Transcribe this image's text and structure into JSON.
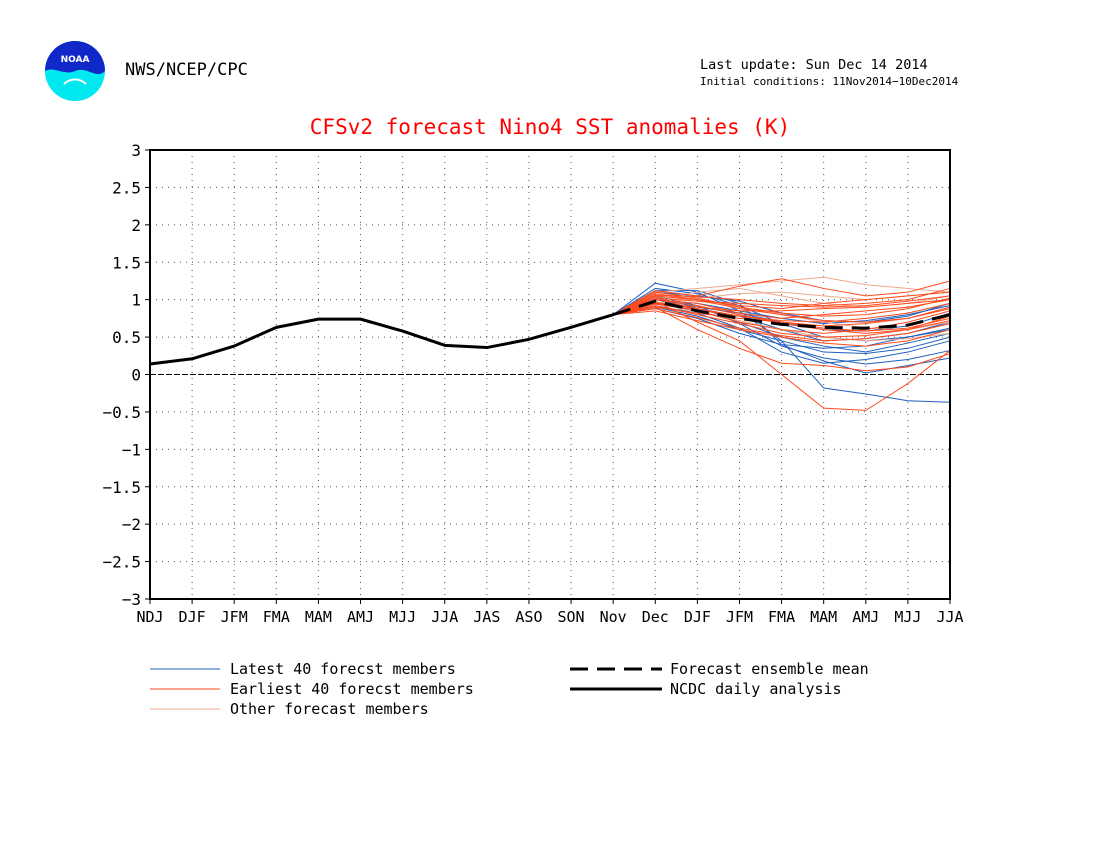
{
  "header": {
    "agency": "NWS/NCEP/CPC",
    "logo_text": "NOAA",
    "last_update": "Last update: Sun Dec 14 2014",
    "initial_conditions": "Initial conditions: 11Nov2014−10Dec2014"
  },
  "colors": {
    "title": "#ff0000",
    "latest": "#1f5fbf",
    "earliest": "#ff4a1c",
    "other": "#f0a890",
    "mean": "#000000",
    "observed": "#000000"
  },
  "legend": {
    "latest": "Latest 40 forecst members",
    "earliest": "Earliest 40 forecst members",
    "other": "Other forecast members",
    "mean": "Forecast ensemble mean",
    "observed": "NCDC daily analysis"
  },
  "chart_data": {
    "type": "line",
    "title": "CFSv2 forecast Nino4 SST anomalies (K)",
    "xlabel": "",
    "ylabel": "",
    "ylim": [
      -3,
      3
    ],
    "yticks": [
      "3",
      "2.5",
      "2",
      "1.5",
      "1",
      "0.5",
      "0",
      "−0.5",
      "−1",
      "−1.5",
      "−2",
      "−2.5",
      "−3"
    ],
    "categories": [
      "NDJ",
      "DJF",
      "JFM",
      "FMA",
      "MAM",
      "AMJ",
      "MJJ",
      "JJA",
      "JAS",
      "ASO",
      "SON",
      "Nov",
      "Dec",
      "DJF",
      "JFM",
      "FMA",
      "MAM",
      "AMJ",
      "MJJ",
      "JJA"
    ],
    "grid": true,
    "zero_line": true,
    "observed": {
      "name": "NCDC daily analysis",
      "values": [
        0.14,
        0.21,
        0.38,
        0.63,
        0.74,
        0.74,
        0.58,
        0.39,
        0.36,
        0.47,
        0.63,
        0.8
      ]
    },
    "ensemble_mean": {
      "name": "Forecast ensemble mean",
      "start_index": 11,
      "values": [
        0.8,
        0.98,
        0.85,
        0.75,
        0.67,
        0.63,
        0.62,
        0.66,
        0.8
      ]
    },
    "member_groups": [
      {
        "name": "Latest 40 forecst members",
        "start_index": 11,
        "members": [
          [
            0.8,
            1.22,
            1.1,
            0.85,
            0.45,
            -0.18,
            -0.26,
            -0.35,
            -0.37
          ],
          [
            0.8,
            1.12,
            1.12,
            0.95,
            0.4,
            0.18,
            0.02,
            0.12,
            0.22
          ],
          [
            0.8,
            1.05,
            0.92,
            0.68,
            0.38,
            0.22,
            0.14,
            0.2,
            0.32
          ],
          [
            0.8,
            1.0,
            0.88,
            0.78,
            0.6,
            0.45,
            0.48,
            0.55,
            0.7
          ],
          [
            0.8,
            0.92,
            0.82,
            0.62,
            0.3,
            0.15,
            0.2,
            0.3,
            0.45
          ],
          [
            0.8,
            1.1,
            1.05,
            0.98,
            0.82,
            0.72,
            0.7,
            0.78,
            0.95
          ],
          [
            0.8,
            0.88,
            0.75,
            0.55,
            0.4,
            0.35,
            0.38,
            0.5,
            0.6
          ],
          [
            0.8,
            1.02,
            0.9,
            0.82,
            0.7,
            0.6,
            0.58,
            0.65,
            0.82
          ],
          [
            0.8,
            0.95,
            0.85,
            0.7,
            0.5,
            0.38,
            0.3,
            0.42,
            0.55
          ],
          [
            0.8,
            1.15,
            1.08,
            0.92,
            0.68,
            0.5,
            0.45,
            0.5,
            0.62
          ],
          [
            0.8,
            0.9,
            0.78,
            0.6,
            0.45,
            0.3,
            0.28,
            0.35,
            0.5
          ],
          [
            0.8,
            1.0,
            0.95,
            0.85,
            0.75,
            0.68,
            0.72,
            0.8,
            0.92
          ]
        ]
      },
      {
        "name": "Other forecast members",
        "start_index": 11,
        "members": [
          [
            0.8,
            1.1,
            1.15,
            1.2,
            1.25,
            1.3,
            1.2,
            1.15,
            1.1
          ],
          [
            0.8,
            0.95,
            1.02,
            1.08,
            1.1,
            1.05,
            1.0,
            1.05,
            1.1
          ],
          [
            0.8,
            1.05,
            0.98,
            0.9,
            0.8,
            0.7,
            0.62,
            0.6,
            0.7
          ],
          [
            0.8,
            0.9,
            0.85,
            0.72,
            0.6,
            0.5,
            0.45,
            0.48,
            0.55
          ],
          [
            0.8,
            1.0,
            1.1,
            1.15,
            1.05,
            0.95,
            0.9,
            0.95,
            1.05
          ]
        ]
      },
      {
        "name": "Earliest 40 forecst members",
        "start_index": 11,
        "members": [
          [
            0.8,
            0.98,
            0.7,
            0.45,
            0.0,
            -0.45,
            -0.48,
            -0.12,
            0.32
          ],
          [
            0.8,
            1.12,
            1.05,
            1.18,
            1.28,
            1.15,
            1.05,
            1.1,
            1.25
          ],
          [
            0.8,
            0.9,
            0.6,
            0.35,
            0.15,
            0.12,
            0.05,
            0.1,
            0.28
          ],
          [
            0.8,
            1.05,
            1.0,
            0.92,
            0.88,
            0.95,
            1.0,
            1.05,
            1.1
          ],
          [
            0.8,
            0.85,
            0.72,
            0.6,
            0.5,
            0.42,
            0.38,
            0.45,
            0.6
          ],
          [
            0.8,
            1.0,
            0.95,
            0.82,
            0.75,
            0.8,
            0.85,
            0.9,
            1.0
          ],
          [
            0.8,
            0.95,
            0.88,
            0.78,
            0.7,
            0.62,
            0.58,
            0.62,
            0.75
          ],
          [
            0.8,
            1.1,
            1.02,
            0.9,
            0.82,
            0.78,
            0.8,
            0.88,
            1.02
          ],
          [
            0.8,
            0.92,
            0.8,
            0.68,
            0.55,
            0.5,
            0.52,
            0.6,
            0.72
          ],
          [
            0.8,
            1.02,
            0.98,
            0.95,
            0.92,
            0.9,
            0.92,
            0.98,
            1.05
          ],
          [
            0.8,
            0.88,
            0.76,
            0.62,
            0.52,
            0.45,
            0.48,
            0.55,
            0.68
          ],
          [
            0.8,
            1.08,
            1.0,
            0.88,
            0.8,
            0.72,
            0.7,
            0.75,
            0.9
          ],
          [
            0.8,
            0.96,
            0.9,
            0.85,
            0.85,
            0.88,
            0.9,
            0.95,
            1.0
          ],
          [
            0.8,
            1.04,
            0.85,
            0.7,
            0.6,
            0.55,
            0.6,
            0.7,
            0.85
          ],
          [
            0.8,
            0.9,
            0.82,
            0.75,
            0.7,
            0.65,
            0.68,
            0.75,
            0.88
          ],
          [
            0.8,
            1.0,
            0.92,
            0.8,
            0.68,
            0.6,
            0.55,
            0.6,
            0.78
          ],
          [
            0.8,
            0.94,
            0.86,
            0.78,
            0.72,
            0.7,
            0.75,
            0.82,
            0.95
          ],
          [
            0.8,
            1.06,
            1.04,
            1.0,
            0.95,
            0.92,
            0.95,
            1.0,
            1.15
          ]
        ]
      }
    ]
  }
}
